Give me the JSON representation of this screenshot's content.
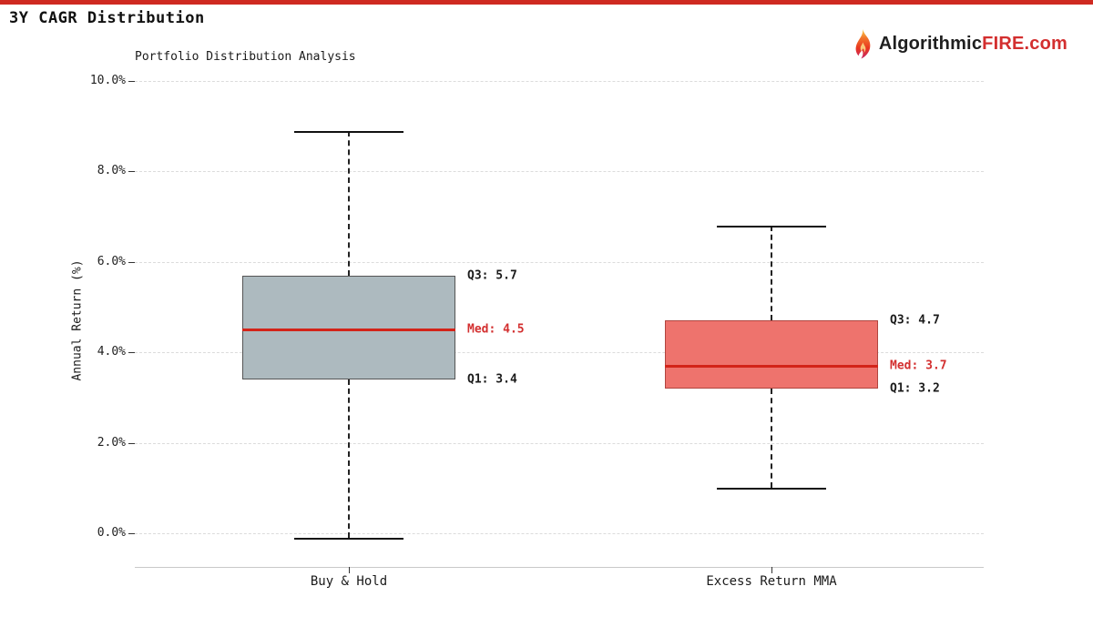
{
  "page": {
    "title": "3Y CAGR Distribution",
    "accent_color": "#cf2a21"
  },
  "brand": {
    "name_prefix": "Algorithmic",
    "name_highlight": "FIRE",
    "name_suffix": ".com",
    "text_color": "#1f1f1f",
    "highlight_color": "#d32f2f"
  },
  "chart_data": {
    "type": "boxplot",
    "title": "Portfolio Distribution Analysis",
    "ylabel": "Annual Return (%)",
    "yticks": [
      0,
      2,
      4,
      6,
      8,
      10
    ],
    "ytick_suffix": "%",
    "ylim": [
      -0.75,
      10.75
    ],
    "grid": true,
    "categories": [
      "Buy & Hold",
      "Excess Return MMA"
    ],
    "series": [
      {
        "name": "Buy & Hold",
        "whisker_low": -0.1,
        "q1": 3.4,
        "median": 4.5,
        "q3": 5.7,
        "whisker_high": 8.9,
        "box_fill": "#adbabf",
        "box_border": "#555555",
        "median_color": "#d32419",
        "labels": {
          "q3": "Q3: 5.7",
          "med": "Med: 4.5",
          "q1": "Q1: 3.4"
        }
      },
      {
        "name": "Excess Return MMA",
        "whisker_low": 1.0,
        "q1": 3.2,
        "median": 3.7,
        "q3": 4.7,
        "whisker_high": 6.8,
        "box_fill": "#ee736d",
        "box_border": "#b0453f",
        "median_color": "#d32419",
        "labels": {
          "q3": "Q3: 4.7",
          "med": "Med: 3.7",
          "q1": "Q1: 3.2"
        }
      }
    ],
    "annotation_color": "#1a1a1a",
    "median_label_color": "#d32f2f"
  }
}
